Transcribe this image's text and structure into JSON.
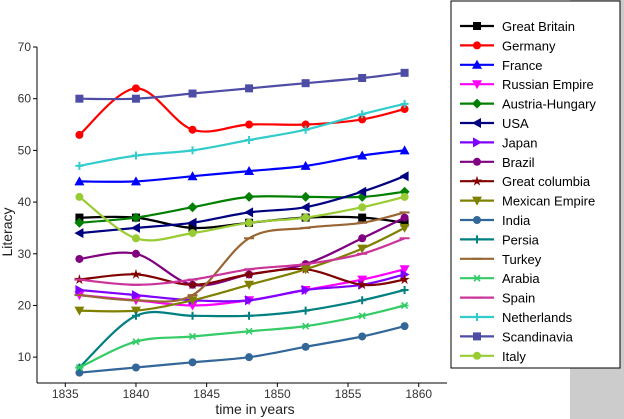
{
  "chart_data": {
    "type": "line",
    "title": "",
    "xlabel": "time in years",
    "ylabel": "Literacy",
    "xlim": [
      1833,
      1862
    ],
    "ylim": [
      5,
      70
    ],
    "xticks": [
      1835,
      1840,
      1845,
      1850,
      1855,
      1860
    ],
    "yticks": [
      10,
      20,
      30,
      40,
      50,
      60,
      70
    ],
    "x": [
      1836,
      1840,
      1844,
      1848,
      1852,
      1856,
      1859
    ],
    "legend_position": "right",
    "series": [
      {
        "name": "Great Britain",
        "color": "#000000",
        "marker": "square",
        "values": [
          37,
          37,
          35,
          36,
          37,
          37,
          36
        ]
      },
      {
        "name": "Germany",
        "color": "#ff0000",
        "marker": "circle",
        "values": [
          53,
          62,
          54,
          55,
          55,
          56,
          58
        ]
      },
      {
        "name": "France",
        "color": "#0000ff",
        "marker": "triangle",
        "values": [
          44,
          44,
          45,
          46,
          47,
          49,
          50
        ]
      },
      {
        "name": "Russian Empire",
        "color": "#ff00ff",
        "marker": "tridown",
        "values": [
          22,
          21,
          20,
          21,
          23,
          25,
          27
        ]
      },
      {
        "name": "Austria-Hungary",
        "color": "#008000",
        "marker": "diamond",
        "values": [
          36,
          37,
          39,
          41,
          41,
          41,
          42
        ]
      },
      {
        "name": "USA",
        "color": "#000080",
        "marker": "triLeft",
        "values": [
          34,
          35,
          36,
          38,
          39,
          42,
          45
        ]
      },
      {
        "name": "Japan",
        "color": "#8000ff",
        "marker": "triRight",
        "values": [
          23,
          22,
          21,
          21,
          23,
          24,
          26
        ]
      },
      {
        "name": "Brazil",
        "color": "#800080",
        "marker": "circle",
        "values": [
          29,
          30,
          24,
          26,
          28,
          33,
          37
        ]
      },
      {
        "name": "Great columbia",
        "color": "#800000",
        "marker": "star",
        "values": [
          25,
          26,
          24,
          26,
          27,
          24,
          25
        ]
      },
      {
        "name": "Mexican Empire",
        "color": "#808000",
        "marker": "tridown",
        "values": [
          19,
          19,
          21,
          24,
          27,
          31,
          35
        ]
      },
      {
        "name": "India",
        "color": "#336699",
        "marker": "circle",
        "values": [
          7,
          8,
          9,
          10,
          12,
          14,
          16
        ]
      },
      {
        "name": "Persia",
        "color": "#008080",
        "marker": "plus",
        "values": [
          8,
          18,
          18,
          18,
          19,
          21,
          23
        ]
      },
      {
        "name": "Turkey",
        "color": "#996633",
        "marker": "dash",
        "values": [
          22,
          21,
          22,
          33,
          35,
          36,
          38
        ]
      },
      {
        "name": "Arabia",
        "color": "#33cc66",
        "marker": "asterisk",
        "values": [
          8,
          13,
          14,
          15,
          16,
          18,
          20
        ]
      },
      {
        "name": "Spain",
        "color": "#cc3399",
        "marker": "dash",
        "values": [
          25,
          24,
          25,
          27,
          28,
          30,
          33
        ]
      },
      {
        "name": "Netherlands",
        "color": "#33cccc",
        "marker": "plus",
        "values": [
          47,
          49,
          50,
          52,
          54,
          57,
          59
        ]
      },
      {
        "name": "Scandinavia",
        "color": "#4d4da6",
        "marker": "square",
        "values": [
          60,
          60,
          61,
          62,
          63,
          64,
          65
        ]
      },
      {
        "name": "Italy",
        "color": "#99cc33",
        "marker": "circle",
        "values": [
          41,
          33,
          34,
          36,
          37,
          39,
          41
        ]
      }
    ]
  }
}
